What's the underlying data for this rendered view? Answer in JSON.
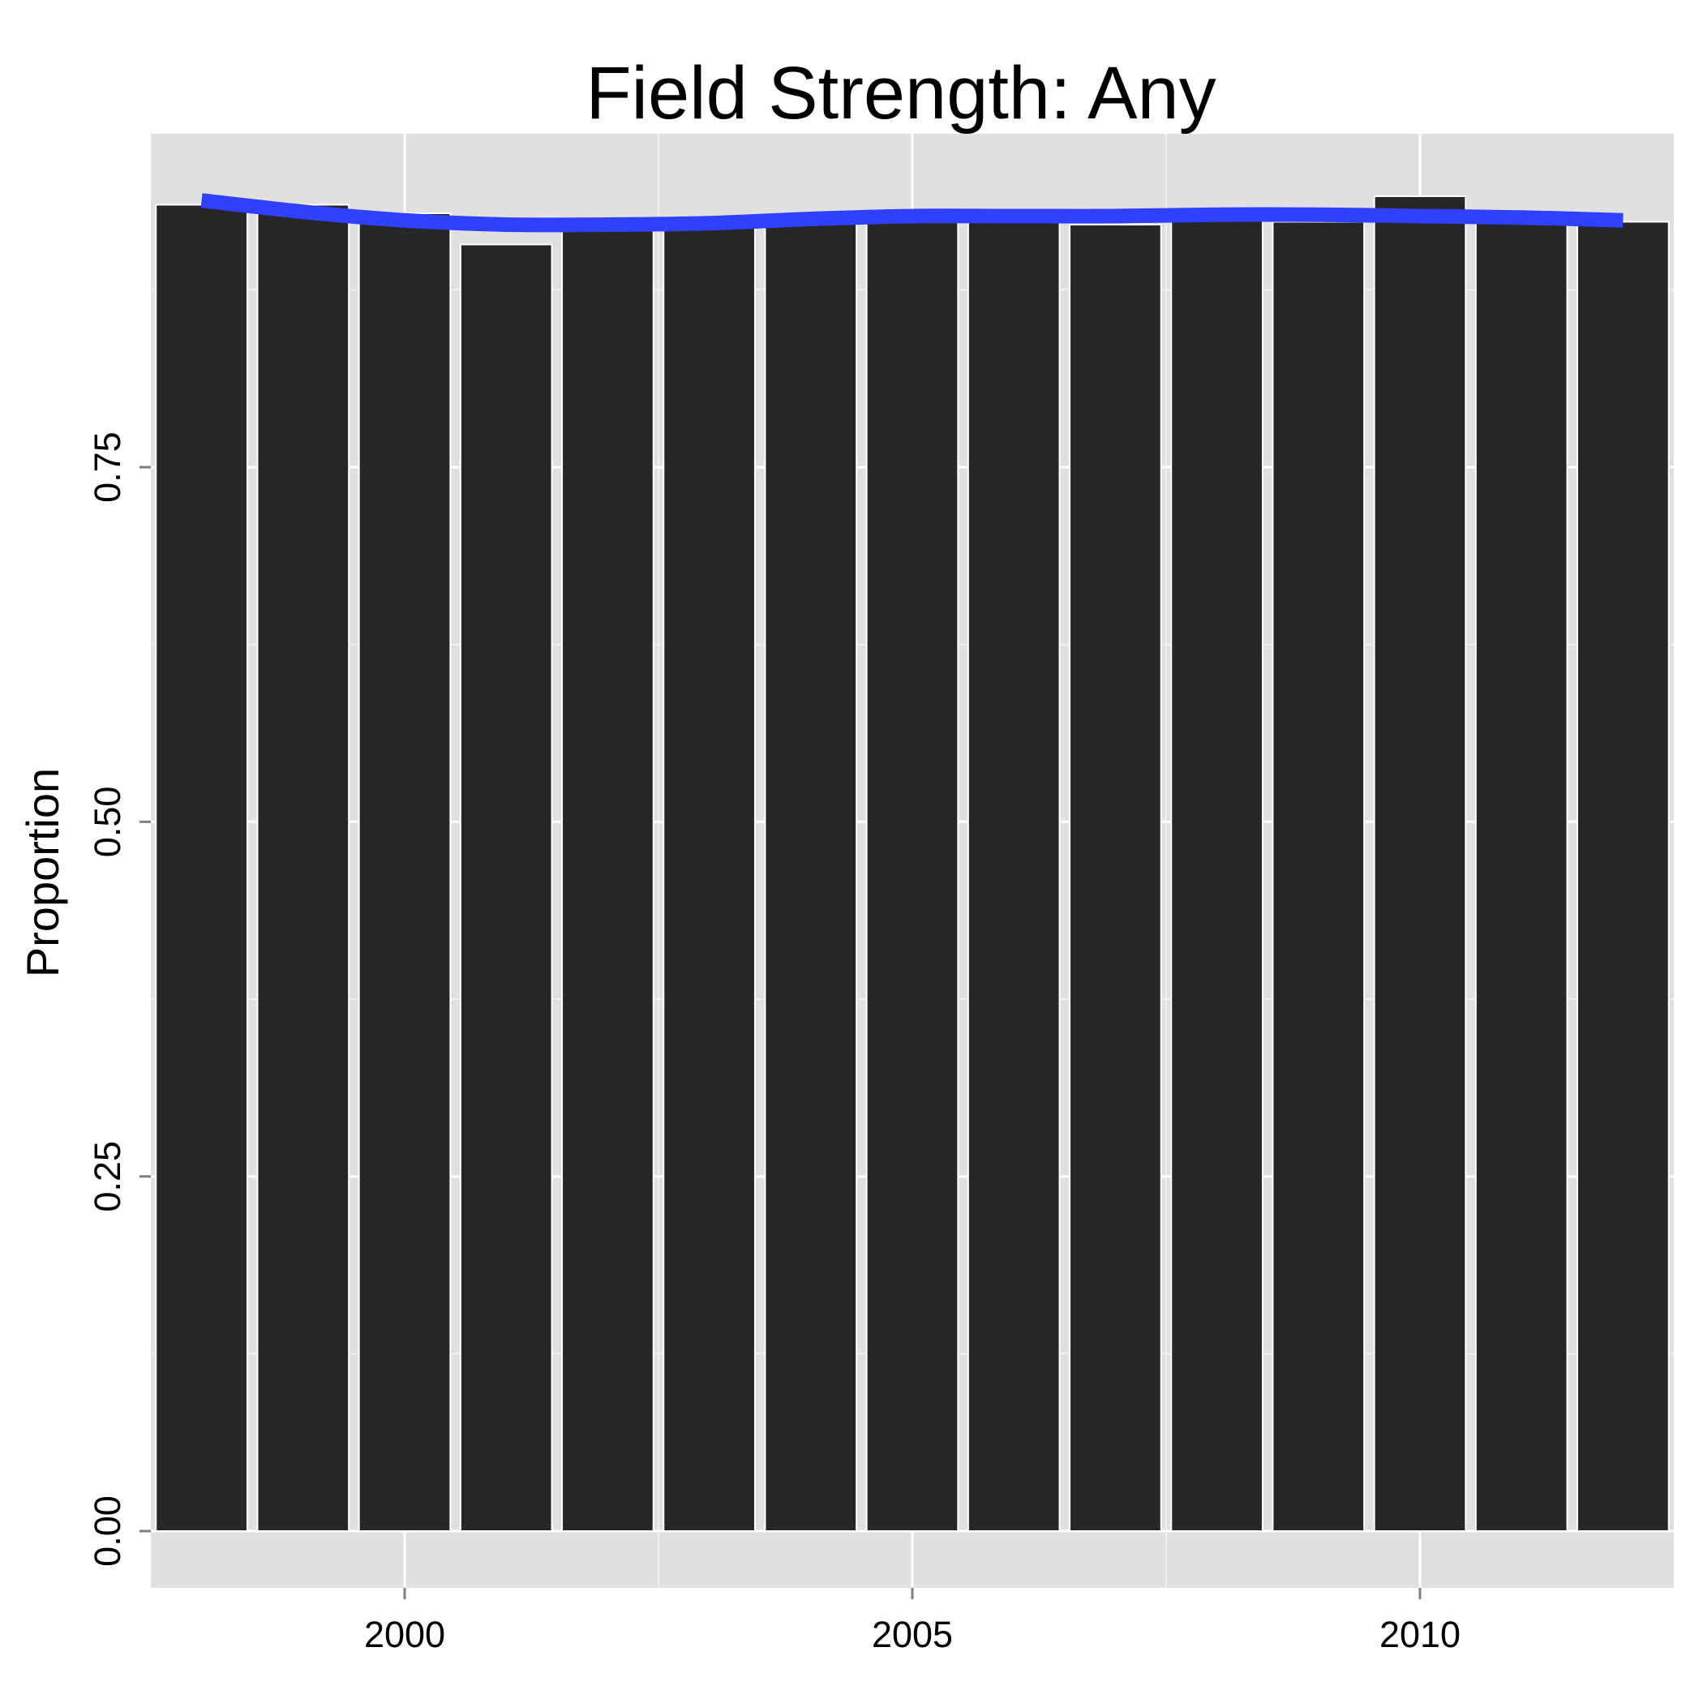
{
  "chart_data": {
    "type": "bar",
    "title": "Field Strength: Any",
    "xlabel": "",
    "ylabel": "Proportion",
    "x": [
      1998,
      1999,
      2000,
      2001,
      2002,
      2003,
      2004,
      2005,
      2006,
      2007,
      2008,
      2009,
      2010,
      2011,
      2012
    ],
    "values": [
      0.935,
      0.935,
      0.929,
      0.907,
      0.92,
      0.922,
      0.923,
      0.927,
      0.924,
      0.921,
      0.926,
      0.923,
      0.941,
      0.926,
      0.923
    ],
    "smooth_line": {
      "x": [
        1998,
        1999,
        2000,
        2001,
        2002,
        2003,
        2004,
        2005,
        2006,
        2007,
        2008,
        2009,
        2010,
        2011,
        2012
      ],
      "y": [
        0.938,
        0.93,
        0.924,
        0.921,
        0.921,
        0.922,
        0.925,
        0.927,
        0.927,
        0.927,
        0.928,
        0.928,
        0.927,
        0.926,
        0.924
      ],
      "color": "#3040ff"
    },
    "xlim": [
      1997.5,
      2012.5
    ],
    "ylim": [
      -0.04,
      0.985
    ],
    "x_ticks": [
      2000,
      2005,
      2010
    ],
    "x_tick_labels": [
      "2000",
      "2005",
      "2010"
    ],
    "y_ticks": [
      0,
      0.25,
      0.5,
      0.75
    ],
    "y_tick_labels": [
      "0.00",
      "0.25",
      "0.50",
      "0.75"
    ],
    "grid": true,
    "colors": {
      "panel_background": "#e0e0e0",
      "grid_major": "#ffffff",
      "grid_minor": "#f0f0f0",
      "bar_fill": "#262626",
      "bar_outline": "#ffffff",
      "axis_tick": "#7f7f7f"
    }
  }
}
